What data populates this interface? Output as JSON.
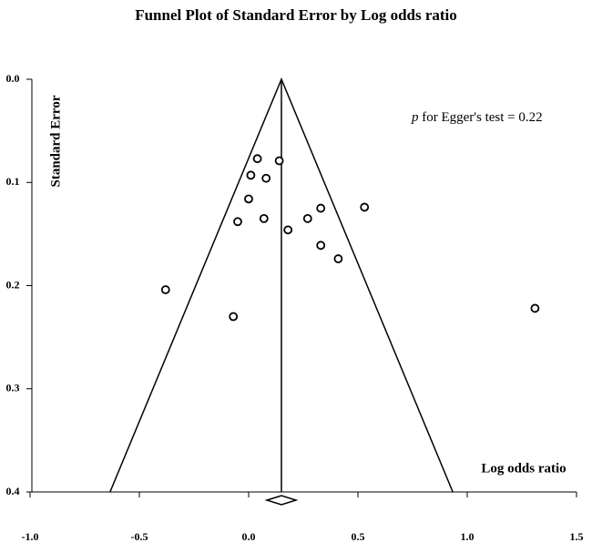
{
  "chart_data": {
    "type": "funnel",
    "title": "Funnel Plot of Standard Error by Log odds ratio",
    "x_label": "Log odds ratio",
    "y_label": "Standard Error",
    "annotation": {
      "italic": "p",
      "text": " for Egger's test = 0.22"
    },
    "x": [
      0.04,
      0.14,
      0.01,
      0.08,
      0.0,
      0.33,
      0.53,
      0.27,
      0.07,
      -0.05,
      0.18,
      0.33,
      0.41,
      -0.38,
      -0.07,
      1.31
    ],
    "values": [
      0.077,
      0.079,
      0.093,
      0.096,
      0.116,
      0.125,
      0.124,
      0.135,
      0.135,
      0.138,
      0.146,
      0.161,
      0.174,
      0.204,
      0.23,
      0.222
    ],
    "summary": 0.15,
    "xlim": [
      -1.0,
      1.5
    ],
    "ylim": [
      0,
      0.4
    ],
    "y_inverted": true,
    "xticks": [
      {
        "value": -1,
        "label": "-1.0"
      },
      -0.5,
      {
        "value": 0,
        "label": "0.0"
      },
      0.5,
      {
        "value": 1,
        "label": "1.0"
      },
      1.5
    ],
    "yticks": [
      {
        "value": 0,
        "label": "0.0"
      },
      0.1,
      0.2,
      0.3,
      0.4
    ],
    "color": "#000000"
  }
}
